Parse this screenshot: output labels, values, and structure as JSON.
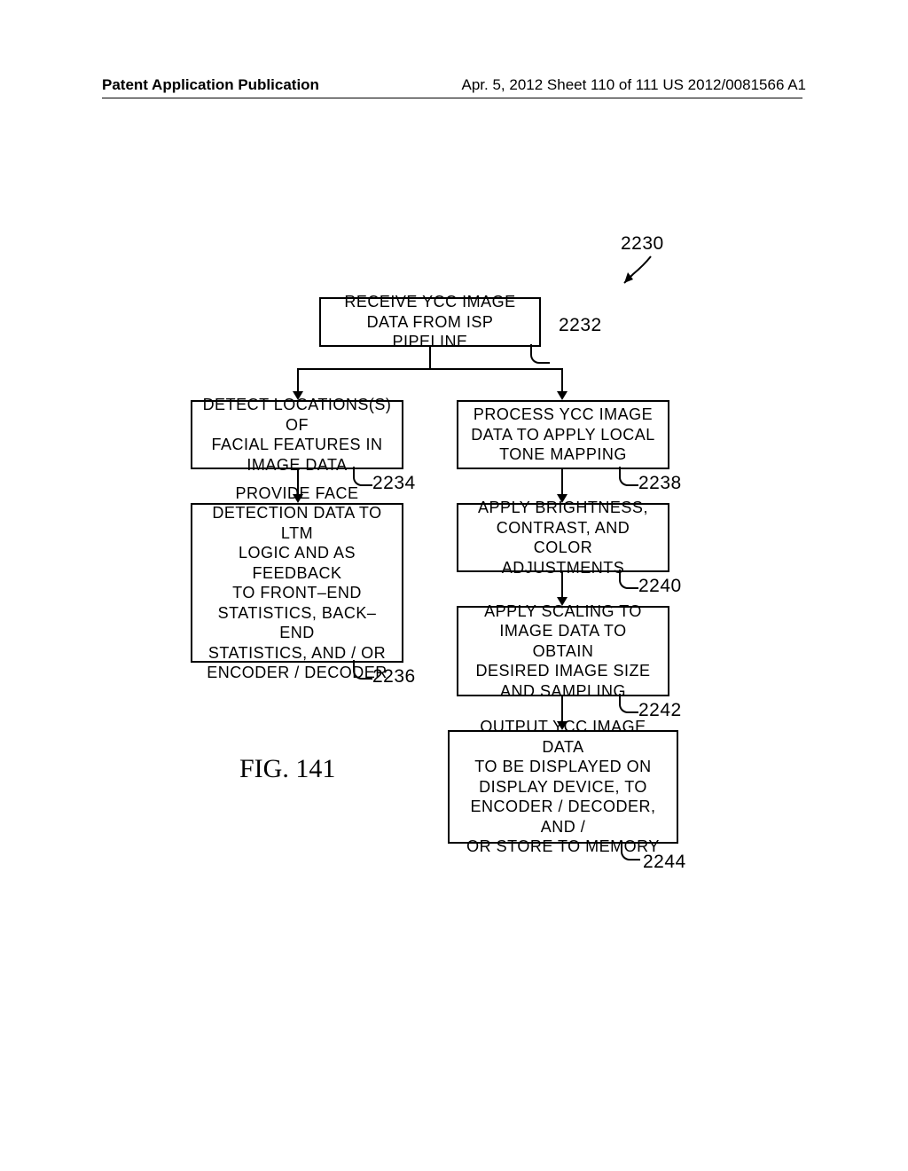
{
  "header": {
    "left": "Patent Application Publication",
    "right": "Apr. 5, 2012  Sheet 110 of 111   US 2012/0081566 A1"
  },
  "figure_title": "FIG. 141",
  "refs": {
    "r2230": "2230",
    "r2232": "2232",
    "r2234": "2234",
    "r2236": "2236",
    "r2238": "2238",
    "r2240": "2240",
    "r2242": "2242",
    "r2244": "2244"
  },
  "boxes": {
    "b2232": "RECEIVE YCC IMAGE\nDATA FROM  ISP  PIPELINE",
    "b2234": "DETECT LOCATIONS(S) OF\nFACIAL FEATURES IN\nIMAGE DATA",
    "b2236": "PROVIDE FACE\nDETECTION DATA TO LTM\nLOGIC AND AS FEEDBACK\nTO FRONT–END\nSTATISTICS, BACK–END\nSTATISTICS, AND / OR\nENCODER / DECODER",
    "b2238": "PROCESS YCC IMAGE\nDATA TO APPLY LOCAL\nTONE MAPPING",
    "b2240": "APPLY BRIGHTNESS,\nCONTRAST, AND  COLOR\nADJUSTMENTS",
    "b2242": "APPLY SCALING TO\nIMAGE DATA TO OBTAIN\nDESIRED  IMAGE SIZE\nAND SAMPLING",
    "b2244": "OUTPUT YCC IMAGE DATA\nTO BE DISPLAYED ON\nDISPLAY DEVICE, TO\nENCODER / DECODER, AND /\nOR STORE TO MEMORY"
  },
  "layout": {
    "colors": {
      "line": "#000000",
      "bg": "#ffffff",
      "text": "#000000"
    },
    "box_border_width": 2,
    "font_size_box": 18,
    "font_size_label": 21,
    "font_size_fig": 30
  }
}
